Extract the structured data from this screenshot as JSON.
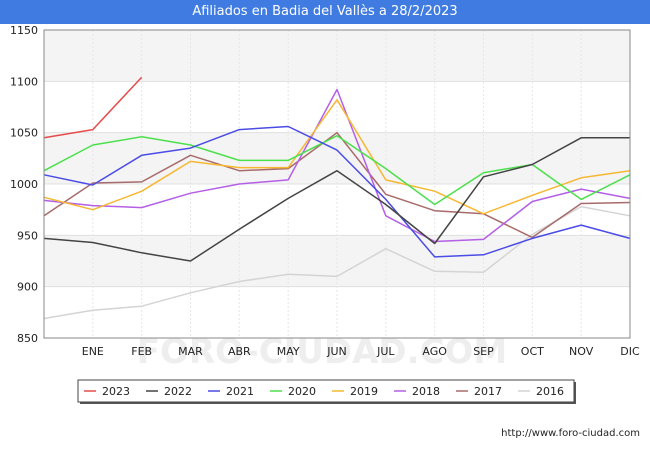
{
  "header": {
    "title": "Afiliados en Badia del Vallès a 28/2/2023"
  },
  "footer": {
    "source": "http://www.foro-ciudad.com"
  },
  "chart_data": {
    "type": "line",
    "title": "Afiliados en Badia del Vallès a 28/2/2023",
    "xlabel": "",
    "ylabel": "",
    "categories": [
      "",
      "ENE",
      "FEB",
      "MAR",
      "ABR",
      "MAY",
      "JUN",
      "JUL",
      "AGO",
      "SEP",
      "OCT",
      "NOV",
      "DIC"
    ],
    "ylim": [
      850,
      1150
    ],
    "yticks": [
      850,
      900,
      950,
      1000,
      1050,
      1100,
      1150
    ],
    "grid": true,
    "background_bands": true,
    "legend_position": "bottom",
    "watermark": "FORO-CIUDAD.COM",
    "series": [
      {
        "name": "2023",
        "color": "#e64a4a",
        "values": [
          1045,
          1053,
          1104,
          null,
          null,
          null,
          null,
          null,
          null,
          null,
          null,
          null,
          null
        ]
      },
      {
        "name": "2022",
        "color": "#444444",
        "values": [
          947,
          943,
          933,
          925,
          956,
          986,
          1013,
          980,
          942,
          1007,
          1019,
          1045,
          1045
        ]
      },
      {
        "name": "2021",
        "color": "#4b4be6",
        "values": [
          1009,
          999,
          1028,
          1035,
          1053,
          1056,
          1033,
          985,
          929,
          931,
          947,
          960,
          947
        ]
      },
      {
        "name": "2020",
        "color": "#4ce04c",
        "values": [
          1013,
          1038,
          1046,
          1038,
          1023,
          1023,
          1047,
          1015,
          980,
          1011,
          1019,
          985,
          1009
        ]
      },
      {
        "name": "2019",
        "color": "#f7b731",
        "values": [
          987,
          975,
          993,
          1022,
          1016,
          1016,
          1082,
          1004,
          993,
          971,
          989,
          1006,
          1013
        ]
      },
      {
        "name": "2018",
        "color": "#b45fe6",
        "values": [
          984,
          979,
          977,
          991,
          1000,
          1004,
          1092,
          969,
          944,
          946,
          983,
          995,
          986
        ]
      },
      {
        "name": "2017",
        "color": "#a86a6a",
        "values": [
          969,
          1001,
          1002,
          1028,
          1013,
          1015,
          1050,
          990,
          974,
          971,
          948,
          981,
          982
        ]
      },
      {
        "name": "2016",
        "color": "#d4d4d4",
        "values": [
          869,
          877,
          881,
          894,
          905,
          912,
          910,
          937,
          915,
          914,
          951,
          978,
          969
        ]
      }
    ]
  }
}
